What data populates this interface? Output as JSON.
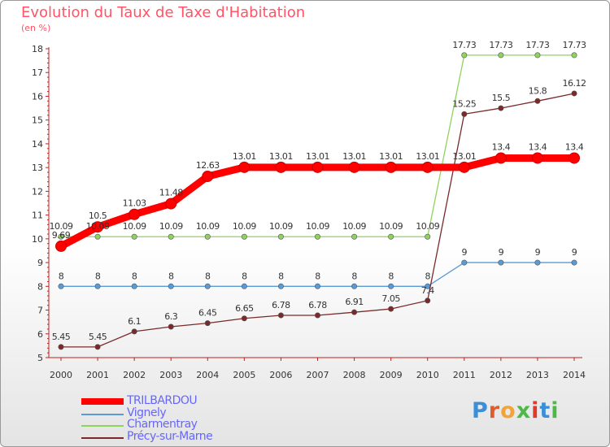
{
  "header": {
    "title": "Evolution du Taux de Taxe d'Habitation",
    "subtitle": "(en %)"
  },
  "chart_data": {
    "type": "line",
    "title": "Evolution du Taux de Taxe d'Habitation",
    "subtitle": "(en %)",
    "xlabel": "",
    "ylabel": "",
    "x": [
      2000,
      2001,
      2002,
      2003,
      2004,
      2005,
      2006,
      2007,
      2008,
      2009,
      2010,
      2011,
      2012,
      2013,
      2014
    ],
    "ylim": [
      5,
      18
    ],
    "yticks": [
      5,
      6,
      7,
      8,
      9,
      10,
      11,
      12,
      13,
      14,
      15,
      16,
      17,
      18
    ],
    "grid": false,
    "legend_position": "bottom-left",
    "series": [
      {
        "name": "TRILBARDOU",
        "color": "#ff0000",
        "values": [
          9.69,
          10.5,
          11.03,
          11.48,
          12.63,
          13.01,
          13.01,
          13.01,
          13.01,
          13.01,
          13.01,
          13.01,
          13.4,
          13.4,
          13.4
        ],
        "labels": [
          "9.69",
          "10.5",
          "11.03",
          "11.48",
          "12.63",
          "13.01",
          "13.01",
          "13.01",
          "13.01",
          "13.01",
          "13.01",
          "13.01",
          "13.4",
          "13.4",
          "13.4"
        ]
      },
      {
        "name": "Vignely",
        "color": "#5b9bd5",
        "values": [
          8,
          8,
          8,
          8,
          8,
          8,
          8,
          8,
          8,
          8,
          8,
          9,
          9,
          9,
          9
        ],
        "labels": [
          "8",
          "8",
          "8",
          "8",
          "8",
          "8",
          "8",
          "8",
          "8",
          "8",
          "8",
          "9",
          "9",
          "9",
          "9"
        ]
      },
      {
        "name": "Charmentray",
        "color": "#8fd45a",
        "values": [
          10.09,
          10.09,
          10.09,
          10.09,
          10.09,
          10.09,
          10.09,
          10.09,
          10.09,
          10.09,
          10.09,
          17.73,
          17.73,
          17.73,
          17.73
        ],
        "labels": [
          "10.09",
          "10.09",
          "10.09",
          "10.09",
          "10.09",
          "10.09",
          "10.09",
          "10.09",
          "10.09",
          "10.09",
          "10.09",
          "17.73",
          "17.73",
          "17.73",
          "17.73"
        ]
      },
      {
        "name": "Précy-sur-Marne",
        "color": "#7a2a2a",
        "values": [
          5.45,
          5.45,
          6.1,
          6.3,
          6.45,
          6.65,
          6.78,
          6.78,
          6.91,
          7.05,
          7.4,
          15.25,
          15.5,
          15.8,
          16.12
        ],
        "labels": [
          "5.45",
          "5.45",
          "6.1",
          "6.3",
          "6.45",
          "6.65",
          "6.78",
          "6.78",
          "6.91",
          "7.05",
          "7.4",
          "15.25",
          "15.5",
          "15.8",
          "16.12"
        ]
      }
    ]
  },
  "legend": {
    "items": [
      {
        "label": "TRILBARDOU",
        "color": "#ff0000"
      },
      {
        "label": "Vignely",
        "color": "#5b9bd5"
      },
      {
        "label": "Charmentray",
        "color": "#8fd45a"
      },
      {
        "label": "Précy-sur-Marne",
        "color": "#7a2a2a"
      }
    ]
  },
  "logo": {
    "text": "Proxiti",
    "colors": [
      "#3a8fd8",
      "#e25c2b",
      "#f2a33a",
      "#4fb848",
      "#e2382b",
      "#3a8fd8",
      "#4fb848"
    ]
  }
}
